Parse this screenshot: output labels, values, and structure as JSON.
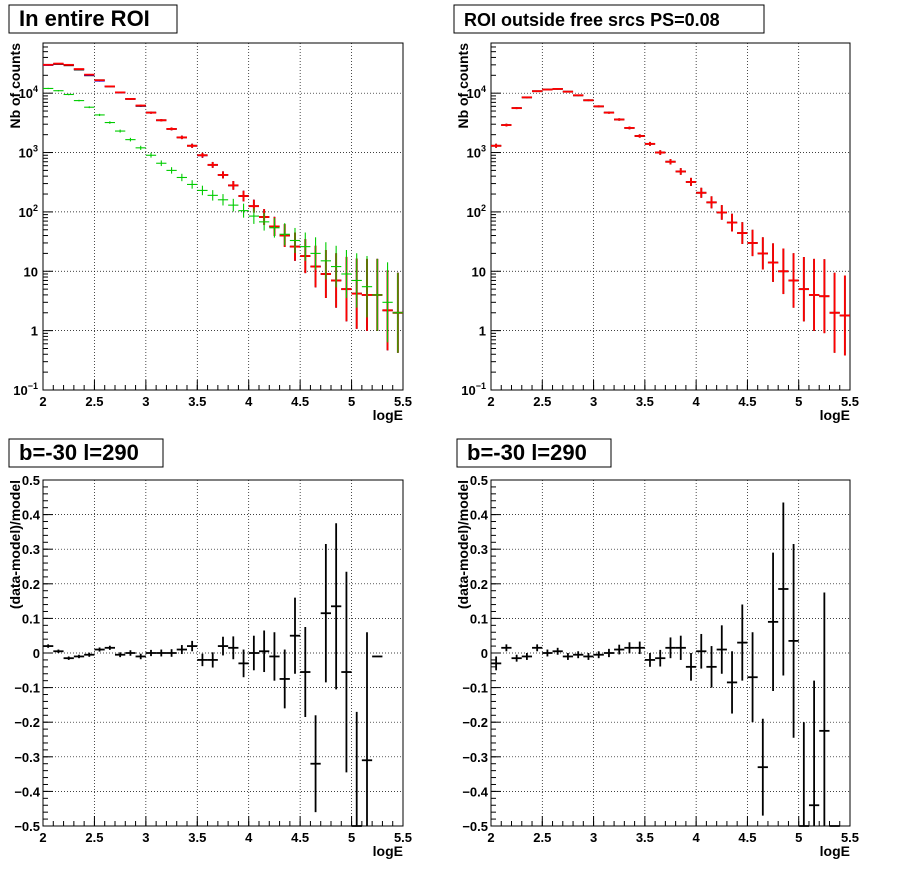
{
  "chart_data": [
    {
      "type": "scatter",
      "title": "In entire ROI",
      "xlabel": "logE",
      "ylabel": "Nb of counts",
      "xlim": [
        2,
        5.5
      ],
      "ylim": [
        0.1,
        70000
      ],
      "yscale": "log",
      "grid": true,
      "xticks": [
        "2",
        "2.5",
        "3",
        "3.5",
        "4",
        "4.5",
        "5",
        "5.5"
      ],
      "yticks": [
        {
          "v": 0.1,
          "base": "10",
          "exp": "−1"
        },
        {
          "v": 1,
          "label": "1"
        },
        {
          "v": 10,
          "label": "10"
        },
        {
          "v": 100,
          "base": "10",
          "exp": "2"
        },
        {
          "v": 1000,
          "base": "10",
          "exp": "3"
        },
        {
          "v": 10000,
          "base": "10",
          "exp": "4"
        }
      ],
      "series": [
        {
          "color": "#000000",
          "x": [
            2.05,
            2.15,
            2.25,
            2.35,
            2.45,
            2.55,
            2.65,
            2.75,
            2.85,
            2.95,
            3.05,
            3.15,
            3.25,
            3.35,
            3.45,
            3.55,
            3.65,
            3.75,
            3.85,
            3.95,
            4.05,
            4.15,
            4.25,
            4.35,
            4.45,
            4.55,
            4.65,
            4.75,
            4.85,
            4.95,
            5.05,
            5.15,
            5.25,
            5.35,
            5.45
          ],
          "y": [
            30000,
            31000,
            29500,
            25000,
            20000,
            16500,
            13000,
            10300,
            8000,
            6100,
            4700,
            3500,
            2500,
            1800,
            1300,
            900,
            620,
            420,
            280,
            185,
            125,
            82,
            57,
            40,
            26,
            18,
            12,
            9,
            7,
            5,
            4.2,
            4,
            4,
            2.2,
            2
          ]
        },
        {
          "color": "#0000ff",
          "x": [
            2.05,
            2.15,
            2.25,
            2.35,
            2.45,
            2.55,
            2.65,
            2.75,
            2.85,
            2.95,
            3.05,
            3.15,
            3.25,
            3.35,
            3.45,
            3.55,
            3.65,
            3.75,
            3.85,
            3.95,
            4.05,
            4.15,
            4.25,
            4.35,
            4.45,
            4.55,
            4.65,
            4.75,
            4.85,
            4.95,
            5.05,
            5.15,
            5.25,
            5.35,
            5.45
          ],
          "y": [
            29500,
            31000,
            30000,
            25500,
            20000,
            16000,
            13000,
            10200,
            8000,
            6100,
            4700,
            3500,
            2500,
            1800,
            1300,
            890,
            620,
            420,
            280,
            185,
            125,
            82,
            57,
            40,
            26,
            18,
            12,
            9,
            7,
            5,
            4.2,
            4,
            4,
            2.2,
            2
          ]
        },
        {
          "color": "#ff0000",
          "x": [
            2.05,
            2.15,
            2.25,
            2.35,
            2.45,
            2.55,
            2.65,
            2.75,
            2.85,
            2.95,
            3.05,
            3.15,
            3.25,
            3.35,
            3.45,
            3.55,
            3.65,
            3.75,
            3.85,
            3.95,
            4.05,
            4.15,
            4.25,
            4.35,
            4.45,
            4.55,
            4.65,
            4.75,
            4.85,
            4.95,
            5.05,
            5.15,
            5.25,
            5.35,
            5.45
          ],
          "y": [
            30000,
            31500,
            30000,
            25500,
            20500,
            16500,
            13000,
            10300,
            8000,
            6200,
            4700,
            3500,
            2500,
            1800,
            1300,
            900,
            620,
            420,
            280,
            185,
            125,
            82,
            57,
            40,
            26,
            18,
            12,
            9,
            7,
            5,
            4.2,
            4,
            4,
            2.2,
            2
          ]
        },
        {
          "color": "#00cc00",
          "x": [
            2.05,
            2.15,
            2.25,
            2.35,
            2.45,
            2.55,
            2.65,
            2.75,
            2.85,
            2.95,
            3.05,
            3.15,
            3.25,
            3.35,
            3.45,
            3.55,
            3.65,
            3.75,
            3.85,
            3.95,
            4.05,
            4.15,
            4.25,
            4.35,
            4.45,
            4.55,
            4.65,
            4.75,
            4.85,
            4.95,
            5.05,
            5.15,
            5.25,
            5.35,
            5.45
          ],
          "y": [
            12000,
            11000,
            9500,
            7500,
            5800,
            4300,
            3200,
            2300,
            1650,
            1200,
            900,
            660,
            500,
            380,
            290,
            230,
            190,
            160,
            130,
            105,
            85,
            68,
            54,
            42,
            33,
            26,
            20,
            15,
            12,
            9,
            7,
            5.5,
            4,
            3,
            2
          ]
        }
      ]
    },
    {
      "type": "scatter",
      "title": "ROI outside free srcs PS=0.08",
      "xlabel": "logE",
      "ylabel": "Nb of counts",
      "xlim": [
        2,
        5.5
      ],
      "ylim": [
        0.1,
        70000
      ],
      "yscale": "log",
      "grid": true,
      "xticks": [
        "2",
        "2.5",
        "3",
        "3.5",
        "4",
        "4.5",
        "5",
        "5.5"
      ],
      "yticks": [
        {
          "v": 0.1,
          "base": "10",
          "exp": "−1"
        },
        {
          "v": 1,
          "label": "1"
        },
        {
          "v": 10,
          "label": "10"
        },
        {
          "v": 100,
          "base": "10",
          "exp": "2"
        },
        {
          "v": 1000,
          "base": "10",
          "exp": "3"
        },
        {
          "v": 10000,
          "base": "10",
          "exp": "4"
        }
      ],
      "series": [
        {
          "color": "#000000",
          "x": [
            2.05,
            2.15,
            2.25,
            2.35,
            2.45,
            2.55,
            2.65,
            2.75,
            2.85,
            2.95,
            3.05,
            3.15,
            3.25,
            3.35,
            3.45,
            3.55,
            3.65,
            3.75,
            3.85,
            3.95,
            4.05,
            4.15,
            4.25,
            4.35,
            4.45,
            4.55,
            4.65,
            4.75,
            4.85,
            4.95,
            5.05,
            5.15,
            5.25,
            5.35,
            5.45
          ],
          "y": [
            1300,
            2900,
            5600,
            8500,
            10800,
            11500,
            11800,
            10600,
            9200,
            7600,
            6000,
            4700,
            3600,
            2600,
            1900,
            1400,
            1000,
            700,
            480,
            320,
            210,
            145,
            98,
            66,
            44,
            30,
            20,
            14,
            10,
            7,
            5,
            4,
            3.8,
            2,
            1.8
          ]
        },
        {
          "color": "#ff0000",
          "x": [
            2.05,
            2.15,
            2.25,
            2.35,
            2.45,
            2.55,
            2.65,
            2.75,
            2.85,
            2.95,
            3.05,
            3.15,
            3.25,
            3.35,
            3.45,
            3.55,
            3.65,
            3.75,
            3.85,
            3.95,
            4.05,
            4.15,
            4.25,
            4.35,
            4.45,
            4.55,
            4.65,
            4.75,
            4.85,
            4.95,
            5.05,
            5.15,
            5.25,
            5.35,
            5.45
          ],
          "y": [
            1300,
            2900,
            5600,
            8500,
            10800,
            11500,
            11800,
            10600,
            9200,
            7600,
            6000,
            4700,
            3600,
            2600,
            1900,
            1400,
            1000,
            700,
            480,
            320,
            210,
            145,
            98,
            66,
            44,
            30,
            20,
            14,
            10,
            7,
            5,
            4,
            3.8,
            2,
            1.8
          ]
        }
      ]
    },
    {
      "type": "scatter",
      "title": "b=-30 l=290",
      "xlabel": "logE",
      "ylabel": "(data-model)/model",
      "xlim": [
        2,
        5.5
      ],
      "ylim": [
        -0.5,
        0.5
      ],
      "grid": true,
      "xticks": [
        "2",
        "2.5",
        "3",
        "3.5",
        "4",
        "4.5",
        "5",
        "5.5"
      ],
      "yticks": [
        "−0.5",
        "−0.4",
        "−0.3",
        "−0.2",
        "−0.1",
        "0",
        "0.1",
        "0.2",
        "0.3",
        "0.4",
        "0.5"
      ],
      "series": [
        {
          "color": "#000000",
          "x": [
            2.05,
            2.15,
            2.25,
            2.35,
            2.45,
            2.55,
            2.65,
            2.75,
            2.85,
            2.95,
            3.05,
            3.15,
            3.25,
            3.35,
            3.45,
            3.55,
            3.65,
            3.75,
            3.85,
            3.95,
            4.05,
            4.15,
            4.25,
            4.35,
            4.45,
            4.55,
            4.65,
            4.75,
            4.85,
            4.95,
            5.05,
            5.15,
            5.25
          ],
          "y": [
            0.02,
            0.005,
            -0.015,
            -0.01,
            -0.005,
            0.01,
            0.015,
            -0.005,
            0.0,
            -0.01,
            0.0,
            0.0,
            0.0,
            0.01,
            0.02,
            -0.02,
            -0.02,
            0.02,
            0.015,
            -0.03,
            0.0,
            0.005,
            -0.01,
            -0.075,
            0.05,
            -0.055,
            -0.32,
            0.115,
            0.135,
            -0.055,
            -0.5,
            -0.31,
            -0.01
          ],
          "err": [
            0.005,
            0.005,
            0.005,
            0.005,
            0.006,
            0.006,
            0.006,
            0.007,
            0.008,
            0.008,
            0.009,
            0.01,
            0.011,
            0.013,
            0.015,
            0.018,
            0.022,
            0.027,
            0.033,
            0.04,
            0.05,
            0.06,
            0.07,
            0.085,
            0.11,
            0.13,
            0.14,
            0.2,
            0.24,
            0.29,
            0.33,
            0.37,
            0.0
          ]
        }
      ]
    },
    {
      "type": "scatter",
      "title": "b=-30 l=290",
      "xlabel": "logE",
      "ylabel": "(data-model)/model",
      "xlim": [
        2,
        5.5
      ],
      "ylim": [
        -0.5,
        0.5
      ],
      "grid": true,
      "xticks": [
        "2",
        "2.5",
        "3",
        "3.5",
        "4",
        "4.5",
        "5",
        "5.5"
      ],
      "yticks": [
        "−0.5",
        "−0.4",
        "−0.3",
        "−0.2",
        "−0.1",
        "0",
        "0.1",
        "0.2",
        "0.3",
        "0.4",
        "0.5"
      ],
      "series": [
        {
          "color": "#000000",
          "x": [
            2.05,
            2.15,
            2.25,
            2.35,
            2.45,
            2.55,
            2.65,
            2.75,
            2.85,
            2.95,
            3.05,
            3.15,
            3.25,
            3.35,
            3.45,
            3.55,
            3.65,
            3.75,
            3.85,
            3.95,
            4.05,
            4.15,
            4.25,
            4.35,
            4.45,
            4.55,
            4.65,
            4.75,
            4.85,
            4.95,
            5.05,
            5.15,
            5.25,
            5.35
          ],
          "y": [
            -0.03,
            0.015,
            -0.015,
            -0.01,
            0.015,
            0.0,
            0.005,
            -0.01,
            -0.005,
            -0.01,
            -0.005,
            0.0,
            0.01,
            0.015,
            0.015,
            -0.02,
            -0.015,
            0.015,
            0.015,
            -0.04,
            0.005,
            -0.04,
            0.01,
            -0.085,
            0.03,
            -0.07,
            -0.33,
            0.09,
            0.185,
            0.035,
            -0.5,
            -0.44,
            -0.225,
            -0.5
          ],
          "err": [
            0.02,
            0.01,
            0.01,
            0.01,
            0.01,
            0.01,
            0.01,
            0.01,
            0.01,
            0.01,
            0.01,
            0.012,
            0.014,
            0.016,
            0.018,
            0.02,
            0.024,
            0.03,
            0.035,
            0.04,
            0.05,
            0.06,
            0.07,
            0.09,
            0.11,
            0.13,
            0.14,
            0.2,
            0.25,
            0.28,
            0.3,
            0.36,
            0.4,
            0.0
          ]
        }
      ]
    }
  ]
}
